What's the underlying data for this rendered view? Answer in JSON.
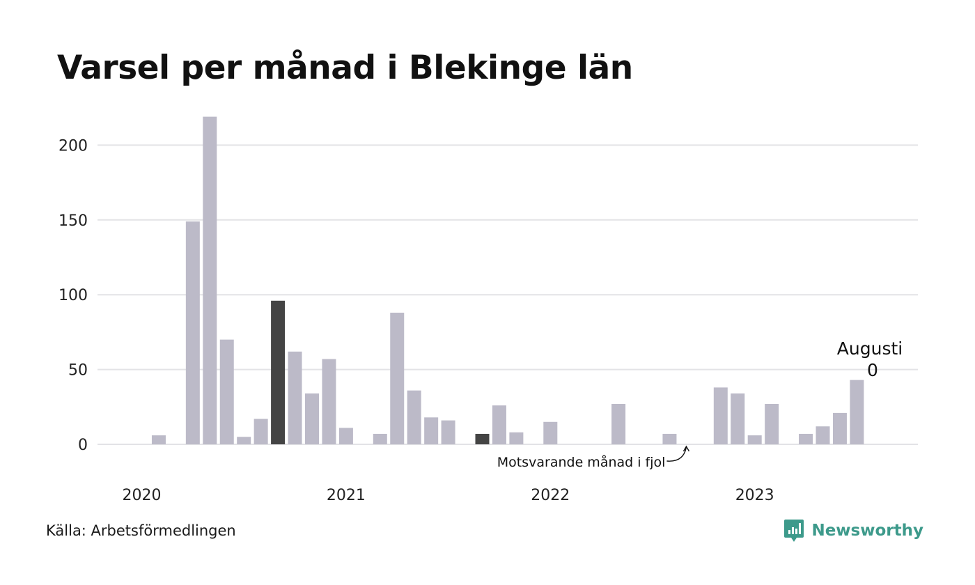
{
  "title": "Varsel per månad i Blekinge län",
  "source": "Källa: Arbetsförmedlingen",
  "brand": "Newsworthy",
  "colors": {
    "bar": "#bcbac8",
    "highlight": "#444444",
    "grid": "#e3e3e6",
    "brand": "#3d9a8b"
  },
  "chart_data": {
    "type": "bar",
    "ylim": [
      0,
      220
    ],
    "yticks": [
      0,
      50,
      100,
      150,
      200
    ],
    "xticks": [
      {
        "label": "2020",
        "index": 0
      },
      {
        "label": "2021",
        "index": 12
      },
      {
        "label": "2022",
        "index": 24
      },
      {
        "label": "2023",
        "index": 36
      }
    ],
    "grid": true,
    "values": [
      0,
      6,
      0,
      149,
      219,
      70,
      5,
      17,
      96,
      62,
      34,
      57,
      11,
      0,
      7,
      88,
      36,
      18,
      16,
      0,
      7,
      26,
      8,
      0,
      15,
      0,
      0,
      0,
      27,
      0,
      0,
      7,
      0,
      0,
      38,
      34,
      6,
      27,
      0,
      7,
      12,
      21,
      43,
      0
    ],
    "highlighted_indices": [
      8,
      20
    ],
    "callout": {
      "index": 43,
      "lines": [
        "Augusti",
        "0"
      ]
    },
    "annotation": {
      "text": "Motsvarande månad i fjol",
      "index": 31
    }
  }
}
